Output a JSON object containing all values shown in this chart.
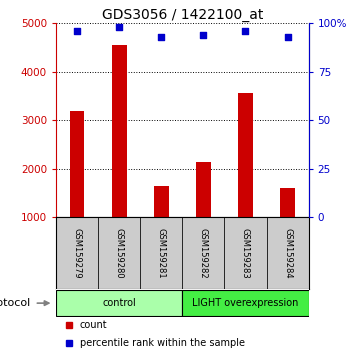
{
  "title": "GDS3056 / 1422100_at",
  "samples": [
    "GSM159279",
    "GSM159280",
    "GSM159281",
    "GSM159282",
    "GSM159283",
    "GSM159284"
  ],
  "counts": [
    3200,
    4550,
    1650,
    2150,
    3550,
    1600
  ],
  "percentiles": [
    96,
    98,
    93,
    94,
    96,
    93
  ],
  "ylim_left": [
    1000,
    5000
  ],
  "ylim_right": [
    0,
    100
  ],
  "yticks_left": [
    1000,
    2000,
    3000,
    4000,
    5000
  ],
  "yticks_right": [
    0,
    25,
    50,
    75,
    100
  ],
  "yticklabels_right": [
    "0",
    "25",
    "50",
    "75",
    "100%"
  ],
  "bar_color": "#cc0000",
  "dot_color": "#0000cc",
  "bar_width": 0.35,
  "groups": [
    {
      "label": "control",
      "indices": [
        0,
        1,
        2
      ],
      "color": "#aaffaa"
    },
    {
      "label": "LIGHT overexpression",
      "indices": [
        3,
        4,
        5
      ],
      "color": "#44ee44"
    }
  ],
  "protocol_label": "protocol",
  "legend_items": [
    {
      "label": "count",
      "color": "#cc0000"
    },
    {
      "label": "percentile rank within the sample",
      "color": "#0000cc"
    }
  ],
  "bg_color": "#ffffff",
  "sample_bg_color": "#cccccc",
  "title_fontsize": 10,
  "tick_fontsize": 7.5,
  "sample_fontsize": 6,
  "legend_fontsize": 7,
  "proto_fontsize": 8
}
